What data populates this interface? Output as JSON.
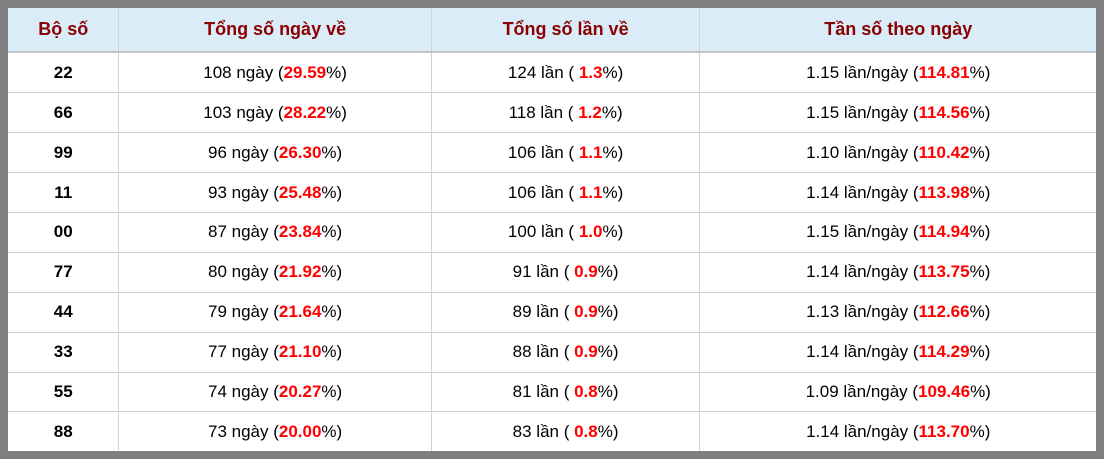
{
  "table": {
    "columns": [
      {
        "label": "Bộ số"
      },
      {
        "label": "Tổng số ngày về"
      },
      {
        "label": "Tổng số lần về"
      },
      {
        "label": "Tần số theo ngày"
      }
    ],
    "rows": [
      {
        "pair": "22",
        "days_pre": "108 ngày (",
        "days_pct": "29.59",
        "days_post": "%)",
        "times_pre": "124 lần ( ",
        "times_pct": "1.3",
        "times_post": "%)",
        "freq_pre": "1.15 lần/ngày (",
        "freq_pct": "114.81",
        "freq_post": "%)"
      },
      {
        "pair": "66",
        "days_pre": "103 ngày (",
        "days_pct": "28.22",
        "days_post": "%)",
        "times_pre": "118 lần ( ",
        "times_pct": "1.2",
        "times_post": "%)",
        "freq_pre": "1.15 lần/ngày (",
        "freq_pct": "114.56",
        "freq_post": "%)"
      },
      {
        "pair": "99",
        "days_pre": "96 ngày (",
        "days_pct": "26.30",
        "days_post": "%)",
        "times_pre": "106 lần ( ",
        "times_pct": "1.1",
        "times_post": "%)",
        "freq_pre": "1.10 lần/ngày (",
        "freq_pct": "110.42",
        "freq_post": "%)"
      },
      {
        "pair": "11",
        "days_pre": "93 ngày (",
        "days_pct": "25.48",
        "days_post": "%)",
        "times_pre": "106 lần ( ",
        "times_pct": "1.1",
        "times_post": "%)",
        "freq_pre": "1.14 lần/ngày (",
        "freq_pct": "113.98",
        "freq_post": "%)"
      },
      {
        "pair": "00",
        "days_pre": "87 ngày (",
        "days_pct": "23.84",
        "days_post": "%)",
        "times_pre": "100 lần ( ",
        "times_pct": "1.0",
        "times_post": "%)",
        "freq_pre": "1.15 lần/ngày (",
        "freq_pct": "114.94",
        "freq_post": "%)"
      },
      {
        "pair": "77",
        "days_pre": "80 ngày (",
        "days_pct": "21.92",
        "days_post": "%)",
        "times_pre": "91 lần ( ",
        "times_pct": "0.9",
        "times_post": "%)",
        "freq_pre": "1.14 lần/ngày (",
        "freq_pct": "113.75",
        "freq_post": "%)"
      },
      {
        "pair": "44",
        "days_pre": "79 ngày (",
        "days_pct": "21.64",
        "days_post": "%)",
        "times_pre": "89 lần ( ",
        "times_pct": "0.9",
        "times_post": "%)",
        "freq_pre": "1.13 lần/ngày (",
        "freq_pct": "112.66",
        "freq_post": "%)"
      },
      {
        "pair": "33",
        "days_pre": "77 ngày (",
        "days_pct": "21.10",
        "days_post": "%)",
        "times_pre": "88 lần ( ",
        "times_pct": "0.9",
        "times_post": "%)",
        "freq_pre": "1.14 lần/ngày (",
        "freq_pct": "114.29",
        "freq_post": "%)"
      },
      {
        "pair": "55",
        "days_pre": "74 ngày (",
        "days_pct": "20.27",
        "days_post": "%)",
        "times_pre": "81 lần ( ",
        "times_pct": "0.8",
        "times_post": "%)",
        "freq_pre": "1.09 lần/ngày (",
        "freq_pct": "109.46",
        "freq_post": "%)"
      },
      {
        "pair": "88",
        "days_pre": "73 ngày (",
        "days_pct": "20.00",
        "days_post": "%)",
        "times_pre": "83 lần ( ",
        "times_pct": "0.8",
        "times_post": "%)",
        "freq_pre": "1.14 lần/ngày (",
        "freq_pct": "113.70",
        "freq_post": "%)"
      }
    ]
  },
  "colors": {
    "frame_border": "#7f7f7f",
    "header_bg": "#d9ecf7",
    "header_text": "#8b0000",
    "highlight": "#ff0000"
  }
}
